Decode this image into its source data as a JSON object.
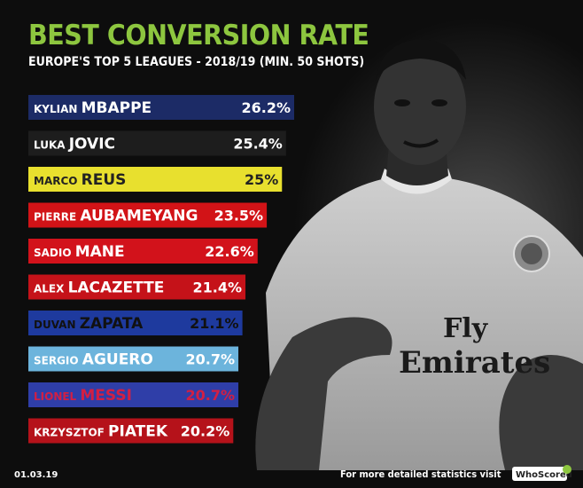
{
  "chart_data": {
    "type": "bar",
    "orientation": "horizontal",
    "title": "BEST CONVERSION RATE",
    "subtitle": "EUROPE'S TOP 5 LEAGUES - 2018/19 (MIN. 50 SHOTS)",
    "unit": "%",
    "xlim": [
      0,
      26.2
    ],
    "categories": [
      {
        "first": "KYLIAN",
        "last": "MBAPPE",
        "value": 26.2,
        "label": "26.2%",
        "color": "#1c2b66",
        "label_color": "#ffffff"
      },
      {
        "first": "LUKA",
        "last": "JOVIC",
        "value": 25.4,
        "label": "25.4%",
        "color": "#1d1d1d",
        "label_color": "#ffffff"
      },
      {
        "first": "MARCO",
        "last": "REUS",
        "value": 25.0,
        "label": "25%",
        "color": "#e8e02e",
        "label_color": "#222222"
      },
      {
        "first": "PIERRE",
        "last": "AUBAMEYANG",
        "value": 23.5,
        "label": "23.5%",
        "color": "#d21317",
        "label_color": "#ffffff"
      },
      {
        "first": "SADIO",
        "last": "MANE",
        "value": 22.6,
        "label": "22.6%",
        "color": "#d2121b",
        "label_color": "#ffffff"
      },
      {
        "first": "ALEX",
        "last": "LACAZETTE",
        "value": 21.4,
        "label": "21.4%",
        "color": "#c51219",
        "label_color": "#ffffff"
      },
      {
        "first": "DUVAN",
        "last": "ZAPATA",
        "value": 21.1,
        "label": "21.1%",
        "color": "#1e3a9e",
        "label_color": "#111111"
      },
      {
        "first": "SERGIO",
        "last": "AGUERO",
        "value": 20.7,
        "label": "20.7%",
        "color": "#6cb4dc",
        "label_color": "#ffffff"
      },
      {
        "first": "LIONEL",
        "last": "MESSI",
        "value": 20.7,
        "label": "20.7%",
        "color": "#2f3ea8",
        "label_color": "#d11f44"
      },
      {
        "first": "KRZYSZTOF",
        "last": "PIATEK",
        "value": 20.2,
        "label": "20.2%",
        "color": "#b5121a",
        "label_color": "#ffffff"
      }
    ]
  },
  "footer": {
    "date": "01.03.19",
    "note": "For more detailed statistics visit",
    "brand": "WhoScored.com"
  }
}
